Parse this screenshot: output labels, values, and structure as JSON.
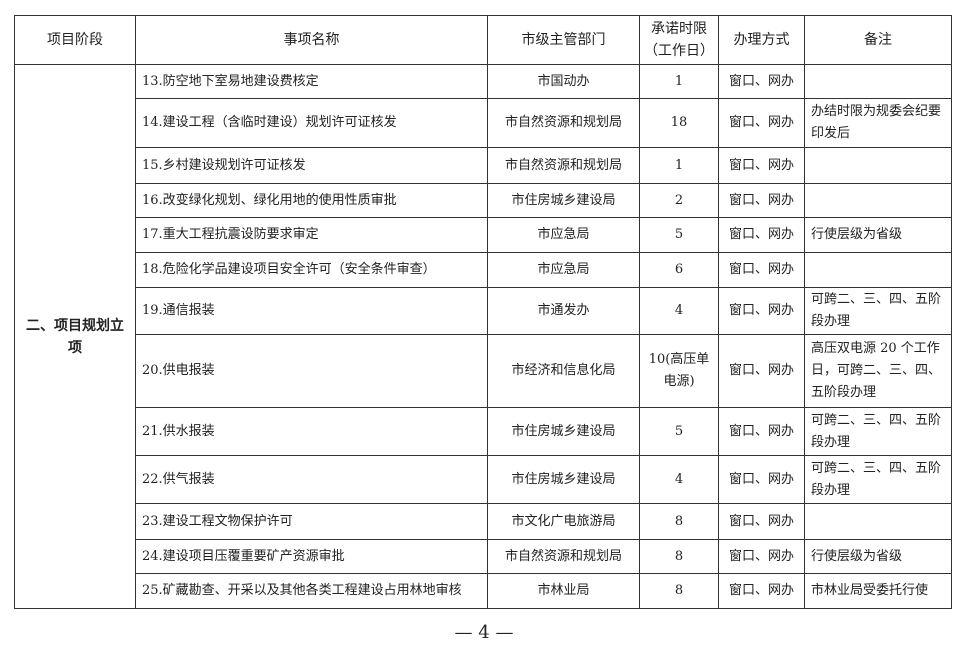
{
  "header": [
    "项目阶段",
    "事项名称",
    "市级主管部门",
    "承诺时限（工作日）",
    "办理方式",
    "备注"
  ],
  "stage": "二、项目规划立项",
  "rows": [
    {
      "name": "13.防空地下室易地建设费核定",
      "dept": "市国动办",
      "days": "1",
      "method": "窗口、网办",
      "note": ""
    },
    {
      "name": "14.建设工程（含临时建设）规划许可证核发",
      "dept": "市自然资源和规划局",
      "days": "18",
      "method": "窗口、网办",
      "note": "办结时限为规委会纪要印发后"
    },
    {
      "name": "15.乡村建设规划许可证核发",
      "dept": "市自然资源和规划局",
      "days": "1",
      "method": "窗口、网办",
      "note": ""
    },
    {
      "name": "16.改变绿化规划、绿化用地的使用性质审批",
      "dept": "市住房城乡建设局",
      "days": "2",
      "method": "窗口、网办",
      "note": ""
    },
    {
      "name": "17.重大工程抗震设防要求审定",
      "dept": "市应急局",
      "days": "5",
      "method": "窗口、网办",
      "note": "行使层级为省级"
    },
    {
      "name": "18.危险化学品建设项目安全许可（安全条件审查）",
      "dept": "市应急局",
      "days": "6",
      "method": "窗口、网办",
      "note": ""
    },
    {
      "name": "19.通信报装",
      "dept": "市通发办",
      "days": "4",
      "method": "窗口、网办",
      "note": "可跨二、三、四、五阶段办理"
    },
    {
      "name": "20.供电报装",
      "dept": "市经济和信息化局",
      "days": "10(高压单电源)",
      "method": "窗口、网办",
      "note": "高压双电源 20 个工作日，可跨二、三、四、五阶段办理"
    },
    {
      "name": "21.供水报装",
      "dept": "市住房城乡建设局",
      "days": "5",
      "method": "窗口、网办",
      "note": "可跨二、三、四、五阶段办理"
    },
    {
      "name": "22.供气报装",
      "dept": "市住房城乡建设局",
      "days": "4",
      "method": "窗口、网办",
      "note": "可跨二、三、四、五阶段办理"
    },
    {
      "name": "23.建设工程文物保护许可",
      "dept": "市文化广电旅游局",
      "days": "8",
      "method": "窗口、网办",
      "note": ""
    },
    {
      "name": "24.建设项目压覆重要矿产资源审批",
      "dept": "市自然资源和规划局",
      "days": "8",
      "method": "窗口、网办",
      "note": "行使层级为省级"
    },
    {
      "name": "25.矿藏勘查、开采以及其他各类工程建设占用林地审核",
      "dept": "市林业局",
      "days": "8",
      "method": "窗口、网办",
      "note": "市林业局受委托行使"
    }
  ],
  "footer": "— 4 —"
}
